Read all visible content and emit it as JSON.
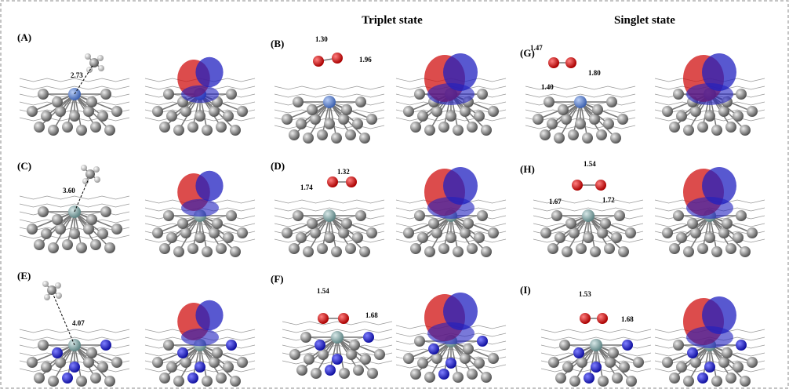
{
  "headers": {
    "triplet": "Triplet state",
    "singlet": "Singlet state"
  },
  "panels": [
    {
      "label": "(A)",
      "distances": [
        "2.73"
      ]
    },
    {
      "label": "(B)",
      "distances": [
        "1.30",
        "1.96"
      ]
    },
    {
      "label": "(C)",
      "distances": [
        "3.60"
      ]
    },
    {
      "label": "(D)",
      "distances": [
        "1.32",
        "1.74"
      ]
    },
    {
      "label": "(E)",
      "distances": [
        "4.07"
      ]
    },
    {
      "label": "(F)",
      "distances": [
        "1.54",
        "1.68"
      ]
    },
    {
      "label": "(G)",
      "distances": [
        "1.47",
        "1.80",
        "1.40"
      ]
    },
    {
      "label": "(H)",
      "distances": [
        "1.54",
        "1.67",
        "1.72"
      ]
    },
    {
      "label": "(I)",
      "distances": [
        "1.53",
        "1.68"
      ]
    }
  ]
}
